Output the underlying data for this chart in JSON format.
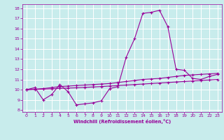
{
  "xlabel": "Windchill (Refroidissement éolien,°C)",
  "bg_color": "#c8ecec",
  "line_color": "#990099",
  "grid_color": "#ffffff",
  "xlim": [
    -0.5,
    23.5
  ],
  "ylim": [
    7.8,
    18.4
  ],
  "yticks": [
    8,
    9,
    10,
    11,
    12,
    13,
    14,
    15,
    16,
    17,
    18
  ],
  "xticks": [
    0,
    1,
    2,
    3,
    4,
    5,
    6,
    7,
    8,
    9,
    10,
    11,
    12,
    13,
    14,
    15,
    16,
    17,
    18,
    19,
    20,
    21,
    22,
    23
  ],
  "x": [
    0,
    1,
    2,
    3,
    4,
    5,
    6,
    7,
    8,
    9,
    10,
    11,
    12,
    13,
    14,
    15,
    16,
    17,
    18,
    19,
    20,
    21,
    22,
    23
  ],
  "line1": [
    10.0,
    10.2,
    9.0,
    9.5,
    10.5,
    9.8,
    8.5,
    8.6,
    8.7,
    8.9,
    10.1,
    10.3,
    13.2,
    15.0,
    17.5,
    17.6,
    17.8,
    16.2,
    12.0,
    11.9,
    11.1,
    11.0,
    11.3,
    11.5
  ],
  "line2": [
    10.0,
    10.05,
    10.1,
    10.2,
    10.3,
    10.35,
    10.4,
    10.45,
    10.5,
    10.55,
    10.6,
    10.7,
    10.8,
    10.9,
    11.0,
    11.05,
    11.1,
    11.2,
    11.3,
    11.4,
    11.45,
    11.5,
    11.55,
    11.6
  ],
  "line3": [
    10.0,
    10.02,
    10.05,
    10.08,
    10.12,
    10.15,
    10.18,
    10.22,
    10.26,
    10.3,
    10.35,
    10.4,
    10.45,
    10.5,
    10.55,
    10.6,
    10.65,
    10.7,
    10.75,
    10.8,
    10.85,
    10.9,
    10.95,
    11.0
  ]
}
